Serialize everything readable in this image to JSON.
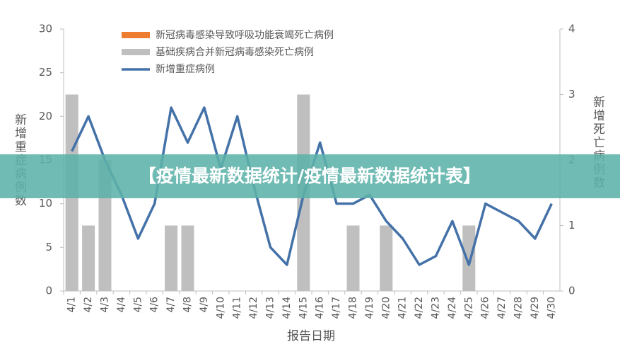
{
  "chart_data": {
    "type": "bar-line",
    "banner": "【疫情最新数据统计/疫情最新数据统计表】",
    "ylabel": "新增重症病例数",
    "y2label": "新增死亡病例数",
    "xlabel": "报告日期",
    "categories": [
      "4/1",
      "4/2",
      "4/3",
      "4/4",
      "4/5",
      "4/6",
      "4/7",
      "4/8",
      "4/9",
      "4/10",
      "4/11",
      "4/12",
      "4/13",
      "4/14",
      "4/15",
      "4/16",
      "4/17",
      "4/18",
      "4/19",
      "4/20",
      "4/21",
      "4/22",
      "4/23",
      "4/24",
      "4/25",
      "4/26",
      "4/27",
      "4/28",
      "4/29",
      "4/30"
    ],
    "series": [
      {
        "name": "新冠病毒感染导致呼吸功能衰竭死亡病例",
        "color": "#ed7d31",
        "type": "bar",
        "axis": "y2",
        "values": [
          0,
          0,
          0,
          0,
          0,
          0,
          0,
          0,
          0,
          0,
          0,
          0,
          0,
          0,
          0,
          0,
          0,
          0,
          0,
          0,
          0,
          0,
          0,
          0,
          0,
          0,
          0,
          0,
          0,
          0
        ]
      },
      {
        "name": "基础疾病合并新冠病毒感染死亡病例",
        "color": "#bfbfbf",
        "type": "bar",
        "axis": "y2",
        "values": [
          3,
          1,
          2,
          0,
          0,
          0,
          1,
          1,
          0,
          0,
          0,
          0,
          0,
          0,
          3,
          0,
          0,
          1,
          0,
          1,
          0,
          0,
          0,
          0,
          1,
          0,
          0,
          0,
          0,
          0
        ]
      },
      {
        "name": "新增重症病例",
        "color": "#4472a8",
        "type": "line",
        "values": [
          16,
          20,
          15,
          11,
          6,
          10,
          21,
          17,
          21,
          14,
          20,
          12,
          5,
          3,
          11,
          17,
          10,
          10,
          11,
          8,
          6,
          3,
          4,
          8,
          3,
          10,
          9,
          8,
          6,
          10
        ]
      }
    ],
    "ylim": [
      0,
      30
    ],
    "yticks": [
      0,
      5,
      10,
      15,
      20,
      25,
      30
    ],
    "y2lim": [
      0,
      4
    ],
    "y2ticks": [
      0,
      1,
      2,
      3,
      4
    ],
    "grid": false
  }
}
